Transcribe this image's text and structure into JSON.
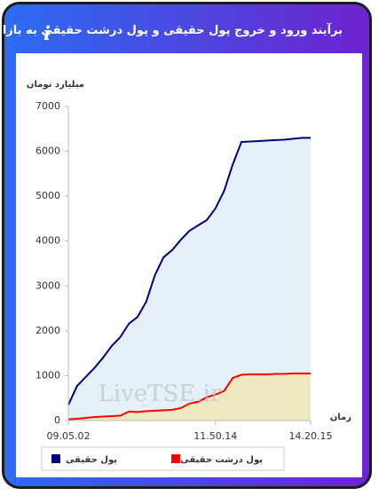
{
  "header": {
    "title": "برآیند ورود و خروج پول حقیقی و پول درشت حقیقی به بازار",
    "info_label": "i"
  },
  "chart_data": {
    "type": "area",
    "y_label": "میلیارد تومان",
    "x_label": "زمان",
    "watermark": "LiveTSE.ir",
    "categories": [
      "09.05.02",
      null,
      null,
      null,
      null,
      null,
      null,
      null,
      null,
      null,
      null,
      null,
      null,
      null,
      null,
      null,
      null,
      "11.50.14",
      null,
      null,
      null,
      null,
      null,
      null,
      null,
      null,
      null,
      null,
      "14.20.15"
    ],
    "series": [
      {
        "name": "پول حقیقی",
        "color": "#000080",
        "fill": "#e4f1f9",
        "values": [
          350,
          770,
          970,
          1170,
          1400,
          1660,
          1860,
          2160,
          2310,
          2650,
          3240,
          3640,
          3800,
          4030,
          4230,
          4350,
          4470,
          4730,
          5120,
          5710,
          6210,
          6220,
          6230,
          6240,
          6250,
          6260,
          6280,
          6300,
          6300
        ]
      },
      {
        "name": "پول درشت حقیقی",
        "color": "#ff0000",
        "fill": "#f0e9bf",
        "values": [
          30,
          40,
          60,
          80,
          90,
          100,
          110,
          200,
          190,
          210,
          220,
          230,
          240,
          280,
          380,
          420,
          520,
          580,
          660,
          950,
          1020,
          1030,
          1030,
          1030,
          1040,
          1040,
          1050,
          1050,
          1050
        ]
      }
    ],
    "ylim": [
      0,
      7000
    ],
    "yticks": [
      0,
      1000,
      2000,
      3000,
      4000,
      5000,
      6000,
      7000
    ],
    "grid": false,
    "legend": "bottom"
  }
}
